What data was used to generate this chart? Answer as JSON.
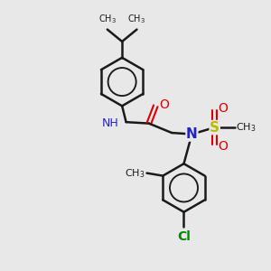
{
  "bg_color": "#e8e8e8",
  "bond_color": "#1a1a1a",
  "bond_width": 1.8,
  "N_color": "#2222cc",
  "O_color": "#dd0000",
  "S_color": "#bbbb00",
  "Cl_color": "#008800",
  "font_size": 9,
  "fig_size": [
    3.0,
    3.0
  ],
  "dpi": 100,
  "xlim": [
    0,
    10
  ],
  "ylim": [
    0,
    10
  ]
}
